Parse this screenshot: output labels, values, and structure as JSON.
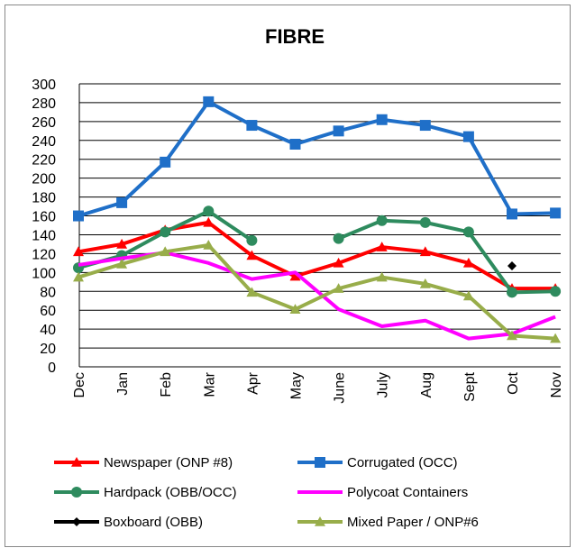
{
  "chart_data": {
    "type": "line",
    "title": "FIBRE",
    "categories": [
      "Dec",
      "Jan",
      "Feb",
      "Mar",
      "Apr",
      "May",
      "June",
      "July",
      "Aug",
      "Sept",
      "Oct",
      "Nov"
    ],
    "ylim": [
      0,
      300
    ],
    "yticks": [
      0,
      20,
      40,
      60,
      80,
      100,
      120,
      140,
      160,
      180,
      200,
      220,
      240,
      260,
      280,
      300
    ],
    "grid": true,
    "legend": "bottom",
    "series": [
      {
        "name": "Newspaper (ONP #8)",
        "color": "#ff0000",
        "marker": "triangle",
        "values": [
          122,
          130,
          145,
          153,
          118,
          96,
          110,
          127,
          122,
          110,
          83,
          83
        ]
      },
      {
        "name": "Corrugated (OCC)",
        "color": "#1f6fc8",
        "marker": "square",
        "values": [
          160,
          174,
          217,
          281,
          256,
          236,
          250,
          262,
          256,
          244,
          162,
          163
        ]
      },
      {
        "name": "Hardpack (OBB/OCC)",
        "color": "#2e8b5e",
        "marker": "circle",
        "values": [
          105,
          118,
          143,
          165,
          134,
          null,
          136,
          155,
          153,
          143,
          79,
          80
        ]
      },
      {
        "name": "Polycoat Containers",
        "color": "#ff00ff",
        "marker": "none",
        "values": [
          108,
          115,
          121,
          110,
          93,
          100,
          61,
          43,
          49,
          30,
          35,
          53
        ]
      },
      {
        "name": "Boxboard (OBB)",
        "color": "#000000",
        "marker": "diamond",
        "values": [
          null,
          null,
          null,
          null,
          null,
          null,
          null,
          null,
          null,
          null,
          107,
          null
        ]
      },
      {
        "name": "Mixed Paper / ONP#6",
        "color": "#98ad4a",
        "marker": "triangle",
        "values": [
          95,
          109,
          122,
          129,
          79,
          61,
          83,
          95,
          88,
          75,
          33,
          30
        ]
      }
    ]
  }
}
